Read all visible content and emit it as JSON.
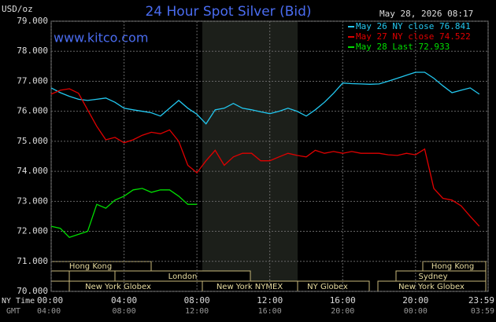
{
  "chart_data": {
    "type": "line",
    "title": "24 Hour Spot Silver (Bid)",
    "y_label": "USD/oz",
    "timestamp": "May 28, 2026 08:17",
    "website": "www.kitco.com",
    "x": [
      "00:00",
      "00:30",
      "01:00",
      "01:30",
      "02:00",
      "02:30",
      "03:00",
      "03:30",
      "04:00",
      "04:30",
      "05:00",
      "05:30",
      "06:00",
      "06:30",
      "07:00",
      "07:30",
      "08:00",
      "08:30",
      "09:00",
      "09:30",
      "10:00",
      "10:30",
      "11:00",
      "11:30",
      "12:00",
      "12:30",
      "13:00",
      "13:30",
      "14:00",
      "14:30",
      "15:00",
      "15:30",
      "16:00",
      "16:30",
      "17:00",
      "17:30",
      "18:00",
      "18:30",
      "19:00",
      "19:30",
      "20:00",
      "20:30",
      "21:00",
      "21:30",
      "22:00",
      "22:30",
      "23:00",
      "23:30"
    ],
    "series": [
      {
        "name": "May 26 NY close 76.841",
        "color": "#22c8f0",
        "values": [
          76.78,
          76.62,
          76.5,
          76.4,
          76.36,
          76.4,
          76.44,
          76.3,
          76.1,
          76.05,
          76.0,
          75.95,
          75.84,
          76.1,
          76.36,
          76.1,
          75.9,
          75.58,
          76.05,
          76.1,
          76.26,
          76.1,
          76.05,
          75.98,
          75.92,
          76.0,
          76.1,
          76.0,
          75.84,
          76.05,
          76.3,
          76.6,
          76.94,
          76.92,
          76.91,
          76.9,
          76.91,
          77.0,
          77.1,
          77.2,
          77.3,
          77.3,
          77.1,
          76.85,
          76.62,
          76.7,
          76.78,
          76.57
        ]
      },
      {
        "name": "May 27 NY close 74.522",
        "color": "#e00000",
        "values": [
          76.57,
          76.7,
          76.75,
          76.6,
          76.05,
          75.5,
          75.05,
          75.13,
          74.95,
          75.05,
          75.2,
          75.3,
          75.25,
          75.38,
          75.0,
          74.2,
          73.95,
          74.35,
          74.7,
          74.2,
          74.48,
          74.6,
          74.6,
          74.35,
          74.35,
          74.48,
          74.6,
          74.53,
          74.48,
          74.7,
          74.6,
          74.66,
          74.6,
          74.66,
          74.6,
          74.6,
          74.6,
          74.55,
          74.53,
          74.6,
          74.55,
          74.74,
          73.43,
          73.1,
          73.04,
          72.85,
          72.5,
          72.17
        ]
      },
      {
        "name": "May 28 Last 72.933",
        "color": "#00dd00",
        "values": [
          72.17,
          72.1,
          71.8,
          71.9,
          72.0,
          72.9,
          72.77,
          73.04,
          73.17,
          73.38,
          73.43,
          73.3,
          73.38,
          73.38,
          73.17,
          72.9,
          72.9,
          null,
          null,
          null,
          null,
          null,
          null,
          null,
          null,
          null,
          null,
          null,
          null,
          null,
          null,
          null,
          null,
          null,
          null,
          null,
          null,
          null,
          null,
          null,
          null,
          null,
          null,
          null,
          null,
          null,
          null,
          null
        ]
      }
    ],
    "ylim": [
      70,
      79
    ],
    "yticks": [
      {
        "value": 70,
        "label": "70.000"
      },
      {
        "value": 71,
        "label": "71.000"
      },
      {
        "value": 72,
        "label": "72.000"
      },
      {
        "value": 73,
        "label": "73.000"
      },
      {
        "value": 74,
        "label": "74.000"
      },
      {
        "value": 75,
        "label": "75.000"
      },
      {
        "value": 76,
        "label": "76.000"
      },
      {
        "value": 77,
        "label": "77.000"
      },
      {
        "value": 78,
        "label": "78.000"
      },
      {
        "value": 79,
        "label": "79.000"
      }
    ],
    "xticks": [
      "00:00",
      "04:00",
      "08:00",
      "12:00",
      "16:00",
      "20:00",
      "23:59"
    ],
    "x_label": "NY Time",
    "xticks2": [
      "04:00",
      "08:00",
      "12:00",
      "16:00",
      "20:00",
      "00:00",
      "03:59"
    ],
    "x2_label": "GMT",
    "grid": true,
    "markets": [
      "Hong Kong",
      "London",
      "New York Globex",
      "New York NYMEX",
      "NY Globex",
      "Hong Kong",
      "Sydney",
      "New York Globex"
    ]
  }
}
